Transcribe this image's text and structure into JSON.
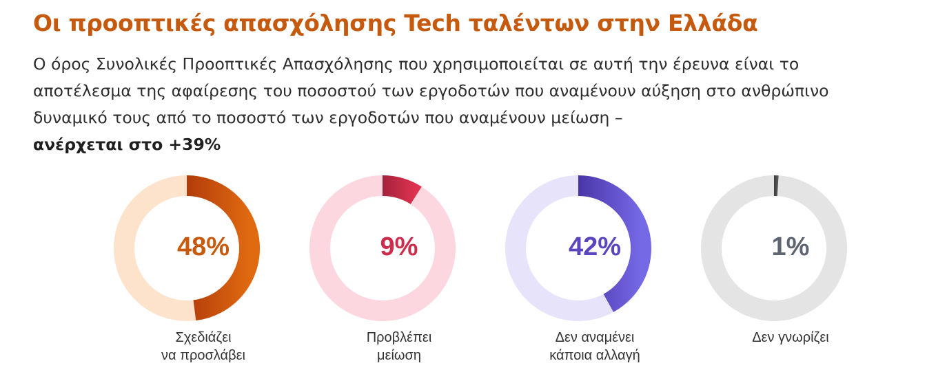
{
  "header": {
    "title": "Οι προοπτικές απασχόλησης Tech ταλέντων στην Ελλάδα",
    "description": "Ο όρος Συνολικές Προοπτικές Απασχόλησης που χρησιμοποιείται σε αυτή την έρευνα είναι το αποτέλεσμα της αφαίρεσης του ποσοστού των εργοδοτών που αναμένουν αύξηση στο ανθρώπινο δυναμικό τους από το ποσοστό των εργοδοτών που αναμένουν μείωση –",
    "highlight": "ανέρχεται στο +39%"
  },
  "chart_data": {
    "type": "pie",
    "variant": "donut",
    "slices": [
      {
        "label": "Σχεδιάζει\nνα προσλάβει",
        "value": 48,
        "display": "48%",
        "color_dark": "#b23c0a",
        "color_light": "#e06a10",
        "track": "#fde3cc",
        "text_color": "#c85a0d"
      },
      {
        "label": "Προβλέπει\nμείωση",
        "value": 9,
        "display": "9%",
        "color_dark": "#a3223d",
        "color_light": "#e0334f",
        "track": "#fdd7df",
        "text_color": "#cc2d4b"
      },
      {
        "label": "Δεν αναμένει\nκάποια αλλαγή",
        "value": 42,
        "display": "42%",
        "color_dark": "#4a36a8",
        "color_light": "#7669e6",
        "track": "#e6e3fb",
        "text_color": "#5b46c0"
      },
      {
        "label": "Δεν γνωρίζει",
        "value": 1,
        "display": "1%",
        "color_dark": "#3c3c3c",
        "color_light": "#5a5a5a",
        "track": "#e4e4e4",
        "text_color": "#5e6470"
      }
    ]
  }
}
